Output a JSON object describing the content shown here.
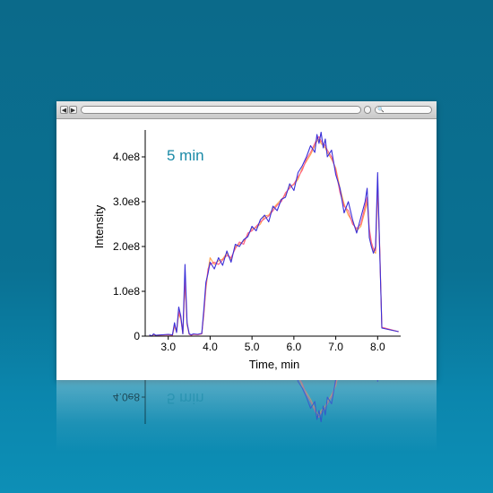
{
  "window": {
    "nav_back_icon": "triangle-left-icon",
    "nav_forward_icon": "triangle-right-icon",
    "search_icon": "magnifier-icon"
  },
  "chart_data": {
    "type": "line",
    "title": "",
    "annotation": "5 min",
    "annotation_color": "#1a8aa7",
    "xlabel": "Time, min",
    "ylabel": "Intensity",
    "xlim": [
      2.45,
      8.55
    ],
    "ylim": [
      0,
      460000000
    ],
    "xticks": [
      3.0,
      4.0,
      5.0,
      6.0,
      7.0,
      8.0
    ],
    "xtick_labels": [
      "3.0",
      "4.0",
      "5.0",
      "6.0",
      "7.0",
      "8.0"
    ],
    "yticks": [
      0,
      100000000,
      200000000,
      300000000,
      400000000
    ],
    "ytick_labels": [
      "0",
      "1.0e8",
      "2.0e8",
      "3.0e8",
      "4.0e8"
    ],
    "grid": false,
    "series": [
      {
        "color": "#3a2fd8",
        "x": [
          2.55,
          2.6,
          2.65,
          2.7,
          3.0,
          3.1,
          3.15,
          3.2,
          3.25,
          3.3,
          3.35,
          3.4,
          3.45,
          3.5,
          3.55,
          3.6,
          3.7,
          3.8,
          3.85,
          3.9,
          3.95,
          4.0,
          4.1,
          4.2,
          4.3,
          4.4,
          4.5,
          4.6,
          4.7,
          4.8,
          4.9,
          5.0,
          5.1,
          5.2,
          5.3,
          5.4,
          5.5,
          5.6,
          5.7,
          5.8,
          5.9,
          6.0,
          6.1,
          6.2,
          6.3,
          6.4,
          6.5,
          6.55,
          6.6,
          6.65,
          6.7,
          6.75,
          6.8,
          6.9,
          7.0,
          7.1,
          7.2,
          7.3,
          7.4,
          7.5,
          7.6,
          7.7,
          7.75,
          7.8,
          7.85,
          7.9,
          7.95,
          8.0,
          8.05,
          8.1,
          8.3,
          8.5
        ],
        "values": [
          3000000,
          0,
          5000000,
          2000000,
          4000000,
          3000000,
          30000000,
          8000000,
          65000000,
          45000000,
          5000000,
          160000000,
          30000000,
          5000000,
          3000000,
          5000000,
          4000000,
          6000000,
          60000000,
          120000000,
          140000000,
          165000000,
          150000000,
          175000000,
          158000000,
          190000000,
          165000000,
          205000000,
          200000000,
          215000000,
          222000000,
          245000000,
          235000000,
          260000000,
          270000000,
          255000000,
          290000000,
          280000000,
          305000000,
          310000000,
          340000000,
          325000000,
          365000000,
          380000000,
          400000000,
          425000000,
          410000000,
          450000000,
          430000000,
          455000000,
          420000000,
          440000000,
          400000000,
          415000000,
          360000000,
          330000000,
          275000000,
          300000000,
          260000000,
          230000000,
          265000000,
          300000000,
          330000000,
          220000000,
          200000000,
          185000000,
          200000000,
          365000000,
          190000000,
          18000000,
          14000000,
          10000000
        ]
      },
      {
        "color": "#ff5d86",
        "x": [
          2.55,
          2.6,
          2.65,
          2.7,
          3.0,
          3.1,
          3.15,
          3.2,
          3.25,
          3.3,
          3.35,
          3.4,
          3.45,
          3.5,
          3.55,
          3.6,
          3.7,
          3.8,
          3.85,
          3.9,
          3.95,
          4.0,
          4.1,
          4.2,
          4.3,
          4.4,
          4.5,
          4.6,
          4.7,
          4.8,
          4.9,
          5.0,
          5.1,
          5.2,
          5.3,
          5.4,
          5.5,
          5.6,
          5.7,
          5.8,
          5.9,
          6.0,
          6.1,
          6.2,
          6.3,
          6.4,
          6.5,
          6.55,
          6.6,
          6.65,
          6.7,
          6.75,
          6.8,
          6.9,
          7.0,
          7.1,
          7.2,
          7.3,
          7.4,
          7.5,
          7.6,
          7.7,
          7.75,
          7.8,
          7.85,
          7.9,
          7.95,
          8.0,
          8.05,
          8.1,
          8.3,
          8.5
        ],
        "values": [
          2000000,
          0,
          4000000,
          2000000,
          3000000,
          2000000,
          25000000,
          10000000,
          55000000,
          40000000,
          6000000,
          130000000,
          28000000,
          4000000,
          2000000,
          4000000,
          3000000,
          5000000,
          50000000,
          110000000,
          150000000,
          160000000,
          165000000,
          160000000,
          170000000,
          180000000,
          175000000,
          195000000,
          210000000,
          205000000,
          230000000,
          235000000,
          245000000,
          255000000,
          262000000,
          268000000,
          280000000,
          292000000,
          300000000,
          320000000,
          330000000,
          340000000,
          355000000,
          370000000,
          395000000,
          410000000,
          430000000,
          440000000,
          445000000,
          435000000,
          430000000,
          425000000,
          415000000,
          400000000,
          370000000,
          320000000,
          290000000,
          280000000,
          250000000,
          240000000,
          250000000,
          290000000,
          310000000,
          240000000,
          210000000,
          195000000,
          190000000,
          340000000,
          200000000,
          20000000,
          15000000,
          10000000
        ]
      },
      {
        "color": "#ffa24a",
        "x": [
          2.55,
          2.6,
          2.65,
          2.7,
          3.0,
          3.1,
          3.15,
          3.2,
          3.25,
          3.3,
          3.35,
          3.4,
          3.45,
          3.5,
          3.55,
          3.6,
          3.7,
          3.8,
          3.85,
          3.9,
          3.95,
          4.0,
          4.1,
          4.2,
          4.3,
          4.4,
          4.5,
          4.6,
          4.7,
          4.8,
          4.9,
          5.0,
          5.1,
          5.2,
          5.3,
          5.4,
          5.5,
          5.6,
          5.7,
          5.8,
          5.9,
          6.0,
          6.1,
          6.2,
          6.3,
          6.4,
          6.5,
          6.55,
          6.6,
          6.65,
          6.7,
          6.75,
          6.8,
          6.9,
          7.0,
          7.1,
          7.2,
          7.3,
          7.4,
          7.5,
          7.6,
          7.7,
          7.75,
          7.8,
          7.85,
          7.9,
          7.95,
          8.0,
          8.05,
          8.1,
          8.3,
          8.5
        ],
        "values": [
          2000000,
          0,
          3000000,
          2000000,
          3000000,
          2000000,
          22000000,
          9000000,
          50000000,
          38000000,
          5000000,
          120000000,
          25000000,
          4000000,
          2000000,
          4000000,
          3000000,
          5000000,
          48000000,
          105000000,
          145000000,
          175000000,
          160000000,
          168000000,
          172000000,
          185000000,
          170000000,
          200000000,
          205000000,
          212000000,
          225000000,
          240000000,
          242000000,
          250000000,
          268000000,
          270000000,
          285000000,
          295000000,
          305000000,
          315000000,
          335000000,
          338000000,
          350000000,
          375000000,
          390000000,
          405000000,
          425000000,
          435000000,
          440000000,
          430000000,
          425000000,
          420000000,
          410000000,
          395000000,
          375000000,
          330000000,
          295000000,
          270000000,
          255000000,
          235000000,
          245000000,
          280000000,
          300000000,
          235000000,
          205000000,
          190000000,
          185000000,
          330000000,
          195000000,
          19000000,
          14000000,
          10000000
        ]
      }
    ]
  }
}
